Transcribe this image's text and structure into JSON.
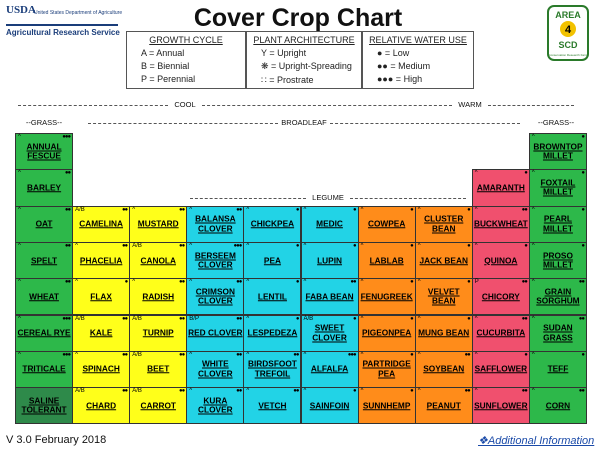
{
  "header": {
    "title": "Cover Crop Chart",
    "usda_logo": "USDA",
    "usda_dept": "United States Department of Agriculture",
    "usda_ars": "Agricultural Research Service",
    "area_badge": {
      "top": "AREA",
      "number": "4",
      "bottom": "SCD",
      "sub": "Conservation Research Farm"
    }
  },
  "legend": {
    "growth_cycle": {
      "title": "GROWTH CYCLE",
      "items": [
        "A = Annual",
        "B = Biennial",
        "P = Perennial"
      ]
    },
    "plant_architecture": {
      "title": "PLANT ARCHITECTURE",
      "items": [
        "Υ = Upright",
        "❋ = Upright-Spreading",
        "∷ = Prostrate"
      ]
    },
    "water_use": {
      "title": "RELATIVE WATER USE",
      "items": [
        "● = Low",
        "●● = Medium",
        "●●● = High"
      ]
    }
  },
  "groups": {
    "cool": "COOL",
    "warm": "WARM",
    "grass_left": "GRASS",
    "grass_right": "GRASS",
    "broadleaf": "BROADLEAF",
    "legume": "LEGUME"
  },
  "colors": {
    "grass_cool": "#2db84a",
    "saline": "#2e8a4a",
    "brassica": "#ffff1a",
    "legume_cool": "#22d3e6",
    "legume_warm": "#ff8c1a",
    "broadleaf_warm": "#f0506e",
    "grass_warm": "#2db84a"
  },
  "crops": [
    {
      "name": "ANNUAL FESCUE",
      "col": 0,
      "row": 0,
      "color": "grass_cool",
      "gc": "^",
      "water": "●●●"
    },
    {
      "name": "BARLEY",
      "col": 0,
      "row": 1,
      "color": "grass_cool",
      "gc": "^",
      "water": "●●"
    },
    {
      "name": "OAT",
      "col": 0,
      "row": 2,
      "color": "grass_cool",
      "gc": "^",
      "water": "●●"
    },
    {
      "name": "SPELT",
      "col": 0,
      "row": 3,
      "color": "grass_cool",
      "gc": "^",
      "water": "●●"
    },
    {
      "name": "WHEAT",
      "col": 0,
      "row": 4,
      "color": "grass_cool",
      "gc": "^",
      "water": "●●"
    },
    {
      "name": "CEREAL RYE",
      "col": 0,
      "row": 5,
      "color": "grass_cool",
      "gc": "^",
      "water": "●●●"
    },
    {
      "name": "TRITICALE",
      "col": 0,
      "row": 6,
      "color": "grass_cool",
      "gc": "^",
      "water": "●●●"
    },
    {
      "name": "SALINE TOLERANT",
      "col": 0,
      "row": 7,
      "color": "saline",
      "gc": "",
      "water": ""
    },
    {
      "name": "CAMELINA",
      "col": 1,
      "row": 2,
      "color": "brassica",
      "gc": "A/B",
      "water": "●●"
    },
    {
      "name": "PHACELIA",
      "col": 1,
      "row": 3,
      "color": "brassica",
      "gc": "^",
      "water": "●●"
    },
    {
      "name": "FLAX",
      "col": 1,
      "row": 4,
      "color": "brassica",
      "gc": "^",
      "water": "●"
    },
    {
      "name": "KALE",
      "col": 1,
      "row": 5,
      "color": "brassica",
      "gc": "A/B",
      "water": "●●"
    },
    {
      "name": "SPINACH",
      "col": 1,
      "row": 6,
      "color": "brassica",
      "gc": "^",
      "water": "●●"
    },
    {
      "name": "CHARD",
      "col": 1,
      "row": 7,
      "color": "brassica",
      "gc": "A/B",
      "water": "●●"
    },
    {
      "name": "MUSTARD",
      "col": 2,
      "row": 2,
      "color": "brassica",
      "gc": "^",
      "water": "●●"
    },
    {
      "name": "CANOLA",
      "col": 2,
      "row": 3,
      "color": "brassica",
      "gc": "A/B",
      "water": "●●"
    },
    {
      "name": "RADISH",
      "col": 2,
      "row": 4,
      "color": "brassica",
      "gc": "^",
      "water": "●●"
    },
    {
      "name": "TURNIP",
      "col": 2,
      "row": 5,
      "color": "brassica",
      "gc": "A/B",
      "water": "●●"
    },
    {
      "name": "BEET",
      "col": 2,
      "row": 6,
      "color": "brassica",
      "gc": "A/B",
      "water": "●●"
    },
    {
      "name": "CARROT",
      "col": 2,
      "row": 7,
      "color": "brassica",
      "gc": "A/B",
      "water": "●●"
    },
    {
      "name": "BALANSA CLOVER",
      "col": 3,
      "row": 2,
      "color": "legume_cool",
      "gc": "^",
      "water": "●●"
    },
    {
      "name": "BERSEEM CLOVER",
      "col": 3,
      "row": 3,
      "color": "legume_cool",
      "gc": "^",
      "water": "●●●"
    },
    {
      "name": "CRIMSON CLOVER",
      "col": 3,
      "row": 4,
      "color": "legume_cool",
      "gc": "^",
      "water": "●●"
    },
    {
      "name": "RED CLOVER",
      "col": 3,
      "row": 5,
      "color": "legume_cool",
      "gc": "B/P",
      "water": "●●"
    },
    {
      "name": "WHITE CLOVER",
      "col": 3,
      "row": 6,
      "color": "legume_cool",
      "gc": "^",
      "water": "●●"
    },
    {
      "name": "KURA CLOVER",
      "col": 3,
      "row": 7,
      "color": "legume_cool",
      "gc": "^",
      "water": "●●"
    },
    {
      "name": "CHICKPEA",
      "col": 4,
      "row": 2,
      "color": "legume_cool",
      "gc": "^",
      "water": "●"
    },
    {
      "name": "PEA",
      "col": 4,
      "row": 3,
      "color": "legume_cool",
      "gc": "^",
      "water": "●"
    },
    {
      "name": "LENTIL",
      "col": 4,
      "row": 4,
      "color": "legume_cool",
      "gc": "^",
      "water": "●"
    },
    {
      "name": "LESPEDEZA",
      "col": 4,
      "row": 5,
      "color": "legume_cool",
      "gc": "^",
      "water": "●"
    },
    {
      "name": "BIRDSFOOT TREFOIL",
      "col": 4,
      "row": 6,
      "color": "legume_cool",
      "gc": "^",
      "water": "●●"
    },
    {
      "name": "VETCH",
      "col": 4,
      "row": 7,
      "color": "legume_cool",
      "gc": "^",
      "water": "●●"
    },
    {
      "name": "MEDIC",
      "col": 5,
      "row": 2,
      "color": "legume_cool",
      "gc": "^",
      "water": "●"
    },
    {
      "name": "LUPIN",
      "col": 5,
      "row": 3,
      "color": "legume_cool",
      "gc": "^",
      "water": "●"
    },
    {
      "name": "FABA BEAN",
      "col": 5,
      "row": 4,
      "color": "legume_cool",
      "gc": "^",
      "water": "●●"
    },
    {
      "name": "SWEET CLOVER",
      "col": 5,
      "row": 5,
      "color": "legume_cool",
      "gc": "A/B",
      "water": "●"
    },
    {
      "name": "ALFALFA",
      "col": 5,
      "row": 6,
      "color": "legume_cool",
      "gc": "^",
      "water": "●●●"
    },
    {
      "name": "SAINFOIN",
      "col": 5,
      "row": 7,
      "color": "legume_cool",
      "gc": "^",
      "water": "●"
    },
    {
      "name": "COWPEA",
      "col": 6,
      "row": 2,
      "color": "legume_warm",
      "gc": "^",
      "water": "●"
    },
    {
      "name": "LABLAB",
      "col": 6,
      "row": 3,
      "color": "legume_warm",
      "gc": "^",
      "water": "●"
    },
    {
      "name": "FENUGREEK",
      "col": 6,
      "row": 4,
      "color": "legume_warm",
      "gc": "^",
      "water": "●"
    },
    {
      "name": "PIGEONPEA",
      "col": 6,
      "row": 5,
      "color": "legume_warm",
      "gc": "^",
      "water": "●"
    },
    {
      "name": "PARTRIDGE PEA",
      "col": 6,
      "row": 6,
      "color": "legume_warm",
      "gc": "^",
      "water": "●"
    },
    {
      "name": "SUNNHEMP",
      "col": 6,
      "row": 7,
      "color": "legume_warm",
      "gc": "^",
      "water": "●"
    },
    {
      "name": "CLUSTER BEAN",
      "col": 7,
      "row": 2,
      "color": "legume_warm",
      "gc": "^",
      "water": "●"
    },
    {
      "name": "JACK BEAN",
      "col": 7,
      "row": 3,
      "color": "legume_warm",
      "gc": "^",
      "water": "●"
    },
    {
      "name": "VELVET BEAN",
      "col": 7,
      "row": 4,
      "color": "legume_warm",
      "gc": "^",
      "water": "●"
    },
    {
      "name": "MUNG BEAN",
      "col": 7,
      "row": 5,
      "color": "legume_warm",
      "gc": "^",
      "water": "●"
    },
    {
      "name": "SOYBEAN",
      "col": 7,
      "row": 6,
      "color": "legume_warm",
      "gc": "^",
      "water": "●●"
    },
    {
      "name": "PEANUT",
      "col": 7,
      "row": 7,
      "color": "legume_warm",
      "gc": "^",
      "water": "●●"
    },
    {
      "name": "AMARANTH",
      "col": 8,
      "row": 1,
      "color": "broadleaf_warm",
      "gc": "^",
      "water": "●"
    },
    {
      "name": "BUCKWHEAT",
      "col": 8,
      "row": 2,
      "color": "broadleaf_warm",
      "gc": "^",
      "water": "●●"
    },
    {
      "name": "QUINOA",
      "col": 8,
      "row": 3,
      "color": "broadleaf_warm",
      "gc": "^",
      "water": "●"
    },
    {
      "name": "CHICORY",
      "col": 8,
      "row": 4,
      "color": "broadleaf_warm",
      "gc": "P",
      "water": "●●"
    },
    {
      "name": "CUCURBITA",
      "col": 8,
      "row": 5,
      "color": "broadleaf_warm",
      "gc": "^",
      "water": "●●"
    },
    {
      "name": "SAFFLOWER",
      "col": 8,
      "row": 6,
      "color": "broadleaf_warm",
      "gc": "^",
      "water": "●"
    },
    {
      "name": "SUNFLOWER",
      "col": 8,
      "row": 7,
      "color": "broadleaf_warm",
      "gc": "^",
      "water": "●●"
    },
    {
      "name": "BROWNTOP MILLET",
      "col": 9,
      "row": 0,
      "color": "grass_warm",
      "gc": "^",
      "water": "●"
    },
    {
      "name": "FOXTAIL MILLET",
      "col": 9,
      "row": 1,
      "color": "grass_warm",
      "gc": "^",
      "water": "●"
    },
    {
      "name": "PEARL MILLET",
      "col": 9,
      "row": 2,
      "color": "grass_warm",
      "gc": "^",
      "water": "●"
    },
    {
      "name": "PROSO MILLET",
      "col": 9,
      "row": 3,
      "color": "grass_warm",
      "gc": "^",
      "water": "●"
    },
    {
      "name": "GRAIN SORGHUM",
      "col": 9,
      "row": 4,
      "color": "grass_warm",
      "gc": "^",
      "water": "●●"
    },
    {
      "name": "SUDAN GRASS",
      "col": 9,
      "row": 5,
      "color": "grass_warm",
      "gc": "^",
      "water": "●●"
    },
    {
      "name": "TEFF",
      "col": 9,
      "row": 6,
      "color": "grass_warm",
      "gc": "^",
      "water": "●"
    },
    {
      "name": "CORN",
      "col": 9,
      "row": 7,
      "color": "grass_warm",
      "gc": "^",
      "water": "●●"
    }
  ],
  "footer": {
    "version": "V 3.0 February 2018",
    "link": "❖Additional Information"
  }
}
